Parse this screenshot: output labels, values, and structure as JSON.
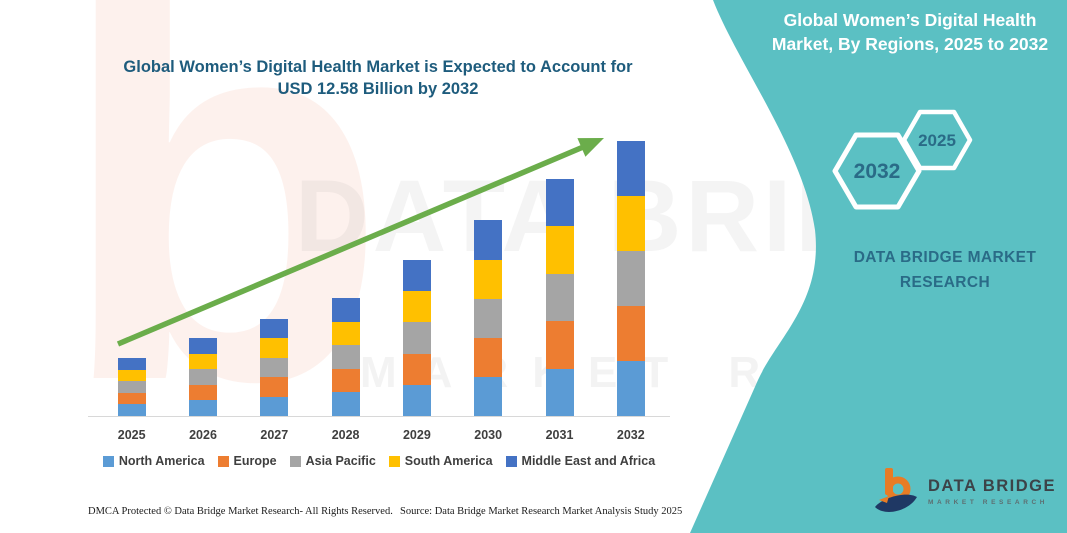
{
  "title": {
    "line1": "Global Women’s Digital Health Market is Expected to Account for",
    "line2": "USD 12.58 Billion by 2032"
  },
  "side_panel": {
    "heading_line1": "Global Women’s Digital Health",
    "heading_line2": "Market, By Regions, 2025 to 2032",
    "hexagons": [
      {
        "label": "2032"
      },
      {
        "label": "2025"
      }
    ],
    "brand_line1": "DATA BRIDGE MARKET",
    "brand_line2": "RESEARCH"
  },
  "logo": {
    "name": "DATA BRIDGE",
    "tagline": "MARKET RESEARCH"
  },
  "footer": {
    "left": "DMCA Protected © Data Bridge Market Research-  All Rights Reserved.",
    "right": "Source: Data Bridge Market Research  Market Analysis Study 2025"
  },
  "watermark": {
    "row1": "DATA BRIDGE",
    "row2": "MARKET RESEARCH",
    "letter_b": "b"
  },
  "colors": {
    "panel_teal": "#5BC0C3",
    "title_text": "#1E5C7D",
    "panel_text": "#2A6B87",
    "arrow_green": "#6BAD4B",
    "axis_gray": "#D8D8D8"
  },
  "chart_data": {
    "type": "bar",
    "stacked": true,
    "title": "Global Women’s Digital Health Market is Expected to Account for USD 12.58 Billion by 2032",
    "unit": "USD Billion",
    "categories": [
      "2025",
      "2026",
      "2027",
      "2028",
      "2029",
      "2030",
      "2031",
      "2032"
    ],
    "series": [
      {
        "name": "North America",
        "color": "#5B9BD5",
        "values": [
          0.53,
          0.71,
          0.89,
          1.08,
          1.43,
          1.79,
          2.17,
          2.52
        ]
      },
      {
        "name": "Europe",
        "color": "#ED7D31",
        "values": [
          0.53,
          0.71,
          0.89,
          1.08,
          1.43,
          1.79,
          2.17,
          2.52
        ]
      },
      {
        "name": "Asia Pacific",
        "color": "#A5A5A5",
        "values": [
          0.53,
          0.71,
          0.89,
          1.08,
          1.43,
          1.79,
          2.17,
          2.52
        ]
      },
      {
        "name": "South America",
        "color": "#FFC000",
        "values": [
          0.53,
          0.71,
          0.89,
          1.08,
          1.43,
          1.79,
          2.17,
          2.52
        ]
      },
      {
        "name": "Middle East and Africa",
        "color": "#4472C4",
        "values": [
          0.53,
          0.71,
          0.89,
          1.08,
          1.43,
          1.79,
          2.17,
          2.52
        ]
      }
    ],
    "totals": [
      2.65,
      3.55,
      4.45,
      5.4,
      7.15,
      8.95,
      10.85,
      12.6
    ],
    "ylim": [
      0,
      13
    ],
    "gridlines": false,
    "legend_position": "bottom",
    "trend_arrow": true
  }
}
